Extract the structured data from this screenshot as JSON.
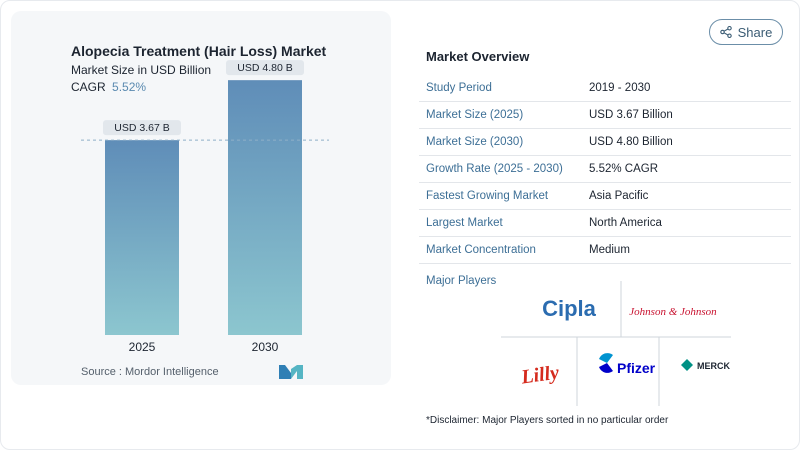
{
  "share": {
    "label": "Share"
  },
  "chart_data": {
    "type": "bar",
    "title": "Alopecia Treatment (Hair Loss) Market",
    "subtitle": "Market Size in USD Billion",
    "cagr_label": "CAGR",
    "cagr_value": "5.52%",
    "categories": [
      "2025",
      "2030"
    ],
    "values": [
      3.67,
      4.8
    ],
    "data_labels": [
      "USD 3.67 B",
      "USD 4.80 B"
    ],
    "ylim": [
      0,
      5.5
    ],
    "reference_line": 3.67,
    "colors": {
      "bar_top": "#5f8db8",
      "bar_bottom": "#8cc6cf",
      "label_bg": "#e2e7ec"
    },
    "source": "Source :  Mordor Intelligence",
    "xlabel": "",
    "ylabel": ""
  },
  "overview": {
    "title": "Market Overview",
    "rows": [
      {
        "key": "Study Period",
        "value": "2019 - 2030"
      },
      {
        "key": "Market Size (2025)",
        "value": "USD 3.67 Billion"
      },
      {
        "key": "Market Size (2030)",
        "value": "USD 4.80 Billion"
      },
      {
        "key": "Growth Rate (2025 - 2030)",
        "value": "5.52% CAGR"
      },
      {
        "key": "Fastest Growing Market",
        "value": "Asia Pacific"
      },
      {
        "key": "Largest Market",
        "value": "North America"
      },
      {
        "key": "Market Concentration",
        "value": "Medium"
      }
    ]
  },
  "players": {
    "title": "Major Players",
    "logos": [
      "Cipla",
      "Johnson & Johnson",
      "Lilly",
      "Pfizer",
      "MERCK"
    ]
  },
  "disclaimer": "*Disclaimer: Major Players sorted in no particular order",
  "accent": "#3d6f96"
}
